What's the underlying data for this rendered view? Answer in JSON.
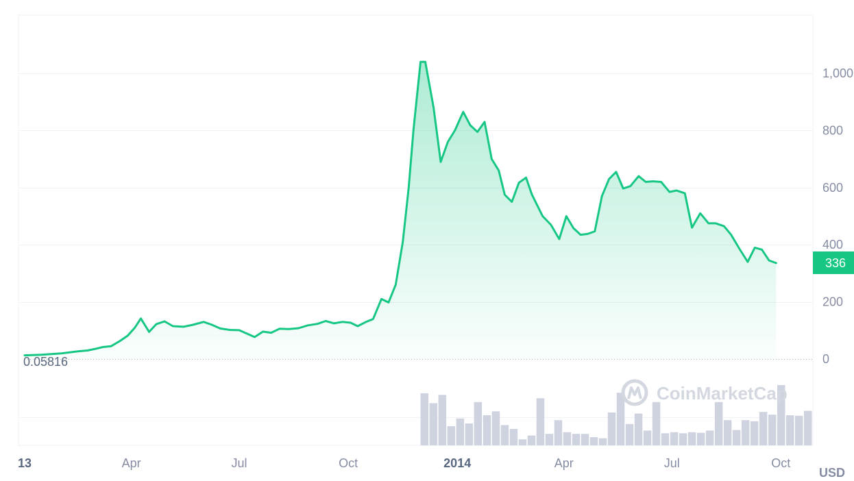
{
  "chart_data": {
    "type": "area",
    "currency": "USD",
    "line_color": "#16c784",
    "volume_color": "#cfd3e0",
    "x_ticks": [
      {
        "date": "2013-01-01",
        "label": "13",
        "bold": true
      },
      {
        "date": "2013-04-01",
        "label": "Apr",
        "bold": false
      },
      {
        "date": "2013-07-01",
        "label": "Jul",
        "bold": false
      },
      {
        "date": "2013-10-01",
        "label": "Oct",
        "bold": false
      },
      {
        "date": "2014-01-01",
        "label": "2014",
        "bold": true
      },
      {
        "date": "2014-04-01",
        "label": "Apr",
        "bold": false
      },
      {
        "date": "2014-07-01",
        "label": "Jul",
        "bold": false
      },
      {
        "date": "2014-10-01",
        "label": "Oct",
        "bold": false
      }
    ],
    "y_ticks": [
      {
        "value": 0,
        "label": "0"
      },
      {
        "value": 200,
        "label": "200"
      },
      {
        "value": 400,
        "label": "400"
      },
      {
        "value": 600,
        "label": "600"
      },
      {
        "value": 800,
        "label": "800"
      },
      {
        "value": 1000,
        "label": "1,000"
      }
    ],
    "ylim": [
      0,
      1200
    ],
    "xlim": [
      "2013-01-01",
      "2014-10-28"
    ],
    "min_label": "0.05816",
    "current_price": 336,
    "current_price_label": "336",
    "price_series": [
      [
        "2013-01-01",
        13
      ],
      [
        "2013-01-15",
        15
      ],
      [
        "2013-02-01",
        20
      ],
      [
        "2013-02-15",
        27
      ],
      [
        "2013-02-23",
        30
      ],
      [
        "2013-03-01",
        35
      ],
      [
        "2013-03-08",
        42
      ],
      [
        "2013-03-15",
        45
      ],
      [
        "2013-03-22",
        62
      ],
      [
        "2013-03-29",
        82
      ],
      [
        "2013-04-04",
        110
      ],
      [
        "2013-04-09",
        142
      ],
      [
        "2013-04-16",
        95
      ],
      [
        "2013-04-22",
        122
      ],
      [
        "2013-04-29",
        132
      ],
      [
        "2013-05-06",
        115
      ],
      [
        "2013-05-15",
        113
      ],
      [
        "2013-05-23",
        120
      ],
      [
        "2013-06-01",
        130
      ],
      [
        "2013-06-08",
        120
      ],
      [
        "2013-06-15",
        107
      ],
      [
        "2013-06-23",
        102
      ],
      [
        "2013-07-01",
        101
      ],
      [
        "2013-07-08",
        88
      ],
      [
        "2013-07-14",
        77
      ],
      [
        "2013-07-21",
        96
      ],
      [
        "2013-07-28",
        92
      ],
      [
        "2013-08-04",
        106
      ],
      [
        "2013-08-12",
        105
      ],
      [
        "2013-08-20",
        108
      ],
      [
        "2013-08-28",
        118
      ],
      [
        "2013-09-05",
        123
      ],
      [
        "2013-09-12",
        133
      ],
      [
        "2013-09-19",
        125
      ],
      [
        "2013-09-26",
        130
      ],
      [
        "2013-10-03",
        127
      ],
      [
        "2013-10-09",
        115
      ],
      [
        "2013-10-16",
        130
      ],
      [
        "2013-10-22",
        140
      ],
      [
        "2013-10-29",
        210
      ],
      [
        "2013-11-04",
        198
      ],
      [
        "2013-11-10",
        260
      ],
      [
        "2013-11-16",
        410
      ],
      [
        "2013-11-21",
        600
      ],
      [
        "2013-11-25",
        800
      ],
      [
        "2013-11-29",
        960
      ],
      [
        "2013-12-01",
        1040
      ],
      [
        "2013-12-05",
        1040
      ],
      [
        "2013-12-12",
        880
      ],
      [
        "2013-12-18",
        690
      ],
      [
        "2013-12-24",
        760
      ],
      [
        "2013-12-30",
        800
      ],
      [
        "2014-01-06",
        865
      ],
      [
        "2014-01-12",
        818
      ],
      [
        "2014-01-18",
        795
      ],
      [
        "2014-01-24",
        830
      ],
      [
        "2014-01-30",
        700
      ],
      [
        "2014-02-05",
        660
      ],
      [
        "2014-02-10",
        575
      ],
      [
        "2014-02-16",
        550
      ],
      [
        "2014-02-22",
        617
      ],
      [
        "2014-02-28",
        635
      ],
      [
        "2014-03-05",
        575
      ],
      [
        "2014-03-14",
        500
      ],
      [
        "2014-03-21",
        470
      ],
      [
        "2014-03-28",
        420
      ],
      [
        "2014-04-03",
        500
      ],
      [
        "2014-04-09",
        458
      ],
      [
        "2014-04-15",
        435
      ],
      [
        "2014-04-21",
        438
      ],
      [
        "2014-04-27",
        447
      ],
      [
        "2014-05-03",
        570
      ],
      [
        "2014-05-09",
        630
      ],
      [
        "2014-05-15",
        655
      ],
      [
        "2014-05-21",
        597
      ],
      [
        "2014-05-27",
        605
      ],
      [
        "2014-06-03",
        640
      ],
      [
        "2014-06-09",
        620
      ],
      [
        "2014-06-15",
        622
      ],
      [
        "2014-06-22",
        620
      ],
      [
        "2014-06-29",
        585
      ],
      [
        "2014-07-05",
        590
      ],
      [
        "2014-07-12",
        580
      ],
      [
        "2014-07-18",
        460
      ],
      [
        "2014-07-25",
        510
      ],
      [
        "2014-08-01",
        475
      ],
      [
        "2014-08-07",
        475
      ],
      [
        "2014-08-14",
        465
      ],
      [
        "2014-08-20",
        435
      ],
      [
        "2014-08-27",
        386
      ],
      [
        "2014-09-03",
        340
      ],
      [
        "2014-09-09",
        390
      ],
      [
        "2014-09-15",
        383
      ],
      [
        "2014-09-21",
        345
      ],
      [
        "2014-09-27",
        336
      ]
    ],
    "volume_start": "2013-12-01",
    "volume_end": "2014-10-28",
    "volume_bars": [
      0.95,
      0.77,
      0.92,
      0.35,
      0.49,
      0.4,
      0.79,
      0.55,
      0.62,
      0.37,
      0.3,
      0.11,
      0.18,
      0.86,
      0.21,
      0.46,
      0.24,
      0.21,
      0.21,
      0.15,
      0.13,
      0.6,
      0.96,
      0.39,
      0.58,
      0.27,
      0.79,
      0.22,
      0.24,
      0.22,
      0.24,
      0.23,
      0.27,
      0.79,
      0.46,
      0.28,
      0.46,
      0.44,
      0.61,
      0.56,
      1.1,
      0.55,
      0.54,
      0.63
    ]
  },
  "watermark": {
    "brand": "CoinMarketCap",
    "icon": "coinmarketcap-logo-icon"
  }
}
